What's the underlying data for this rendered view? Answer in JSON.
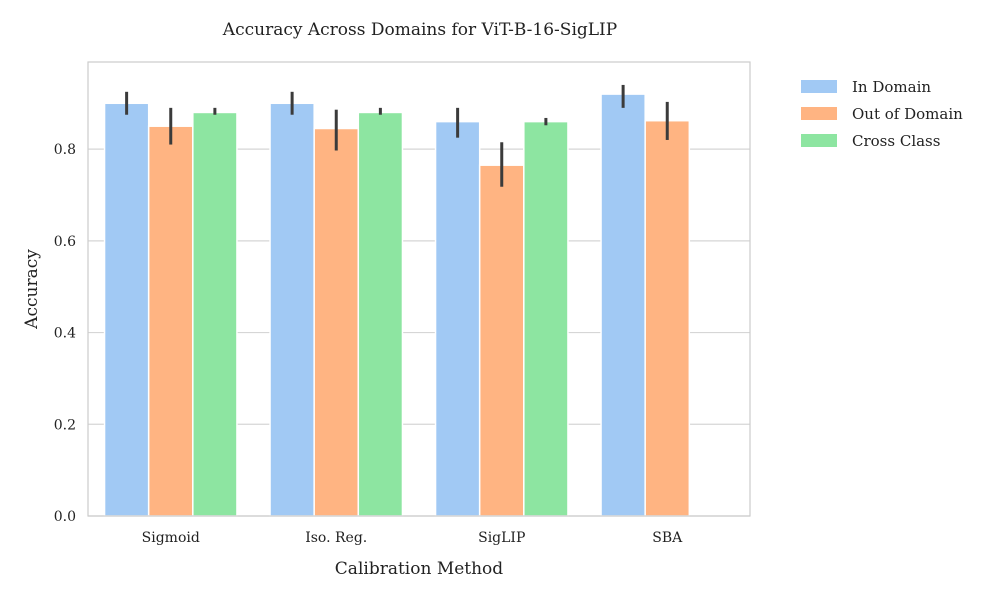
{
  "chart_data": {
    "type": "bar",
    "title": "Accuracy Across Domains for ViT-B-16-SigLIP",
    "xlabel": "Calibration Method",
    "ylabel": "Accuracy",
    "categories": [
      "Sigmoid",
      "Iso. Reg.",
      "SigLIP",
      "SBA"
    ],
    "ylim": [
      0,
      0.99
    ],
    "yticks": [
      "0.0",
      "0.2",
      "0.4",
      "0.6",
      "0.8"
    ],
    "grid": "horizontal",
    "legend_position": "outside-top-right",
    "series": [
      {
        "name": "In Domain",
        "color": "#a1c9f4",
        "values": [
          0.9,
          0.9,
          0.86,
          0.92
        ],
        "err_low": [
          0.875,
          0.875,
          0.825,
          0.89
        ],
        "err_high": [
          0.925,
          0.925,
          0.89,
          0.94
        ]
      },
      {
        "name": "Out of Domain",
        "color": "#ffb482",
        "values": [
          0.85,
          0.845,
          0.765,
          0.862
        ],
        "err_low": [
          0.81,
          0.797,
          0.718,
          0.82
        ],
        "err_high": [
          0.89,
          0.886,
          0.815,
          0.903
        ]
      },
      {
        "name": "Cross Class",
        "color": "#8de5a1",
        "values": [
          0.88,
          0.88,
          0.86,
          null
        ],
        "err_low": [
          0.875,
          0.875,
          0.852,
          null
        ],
        "err_high": [
          0.89,
          0.89,
          0.868,
          null
        ]
      }
    ]
  }
}
